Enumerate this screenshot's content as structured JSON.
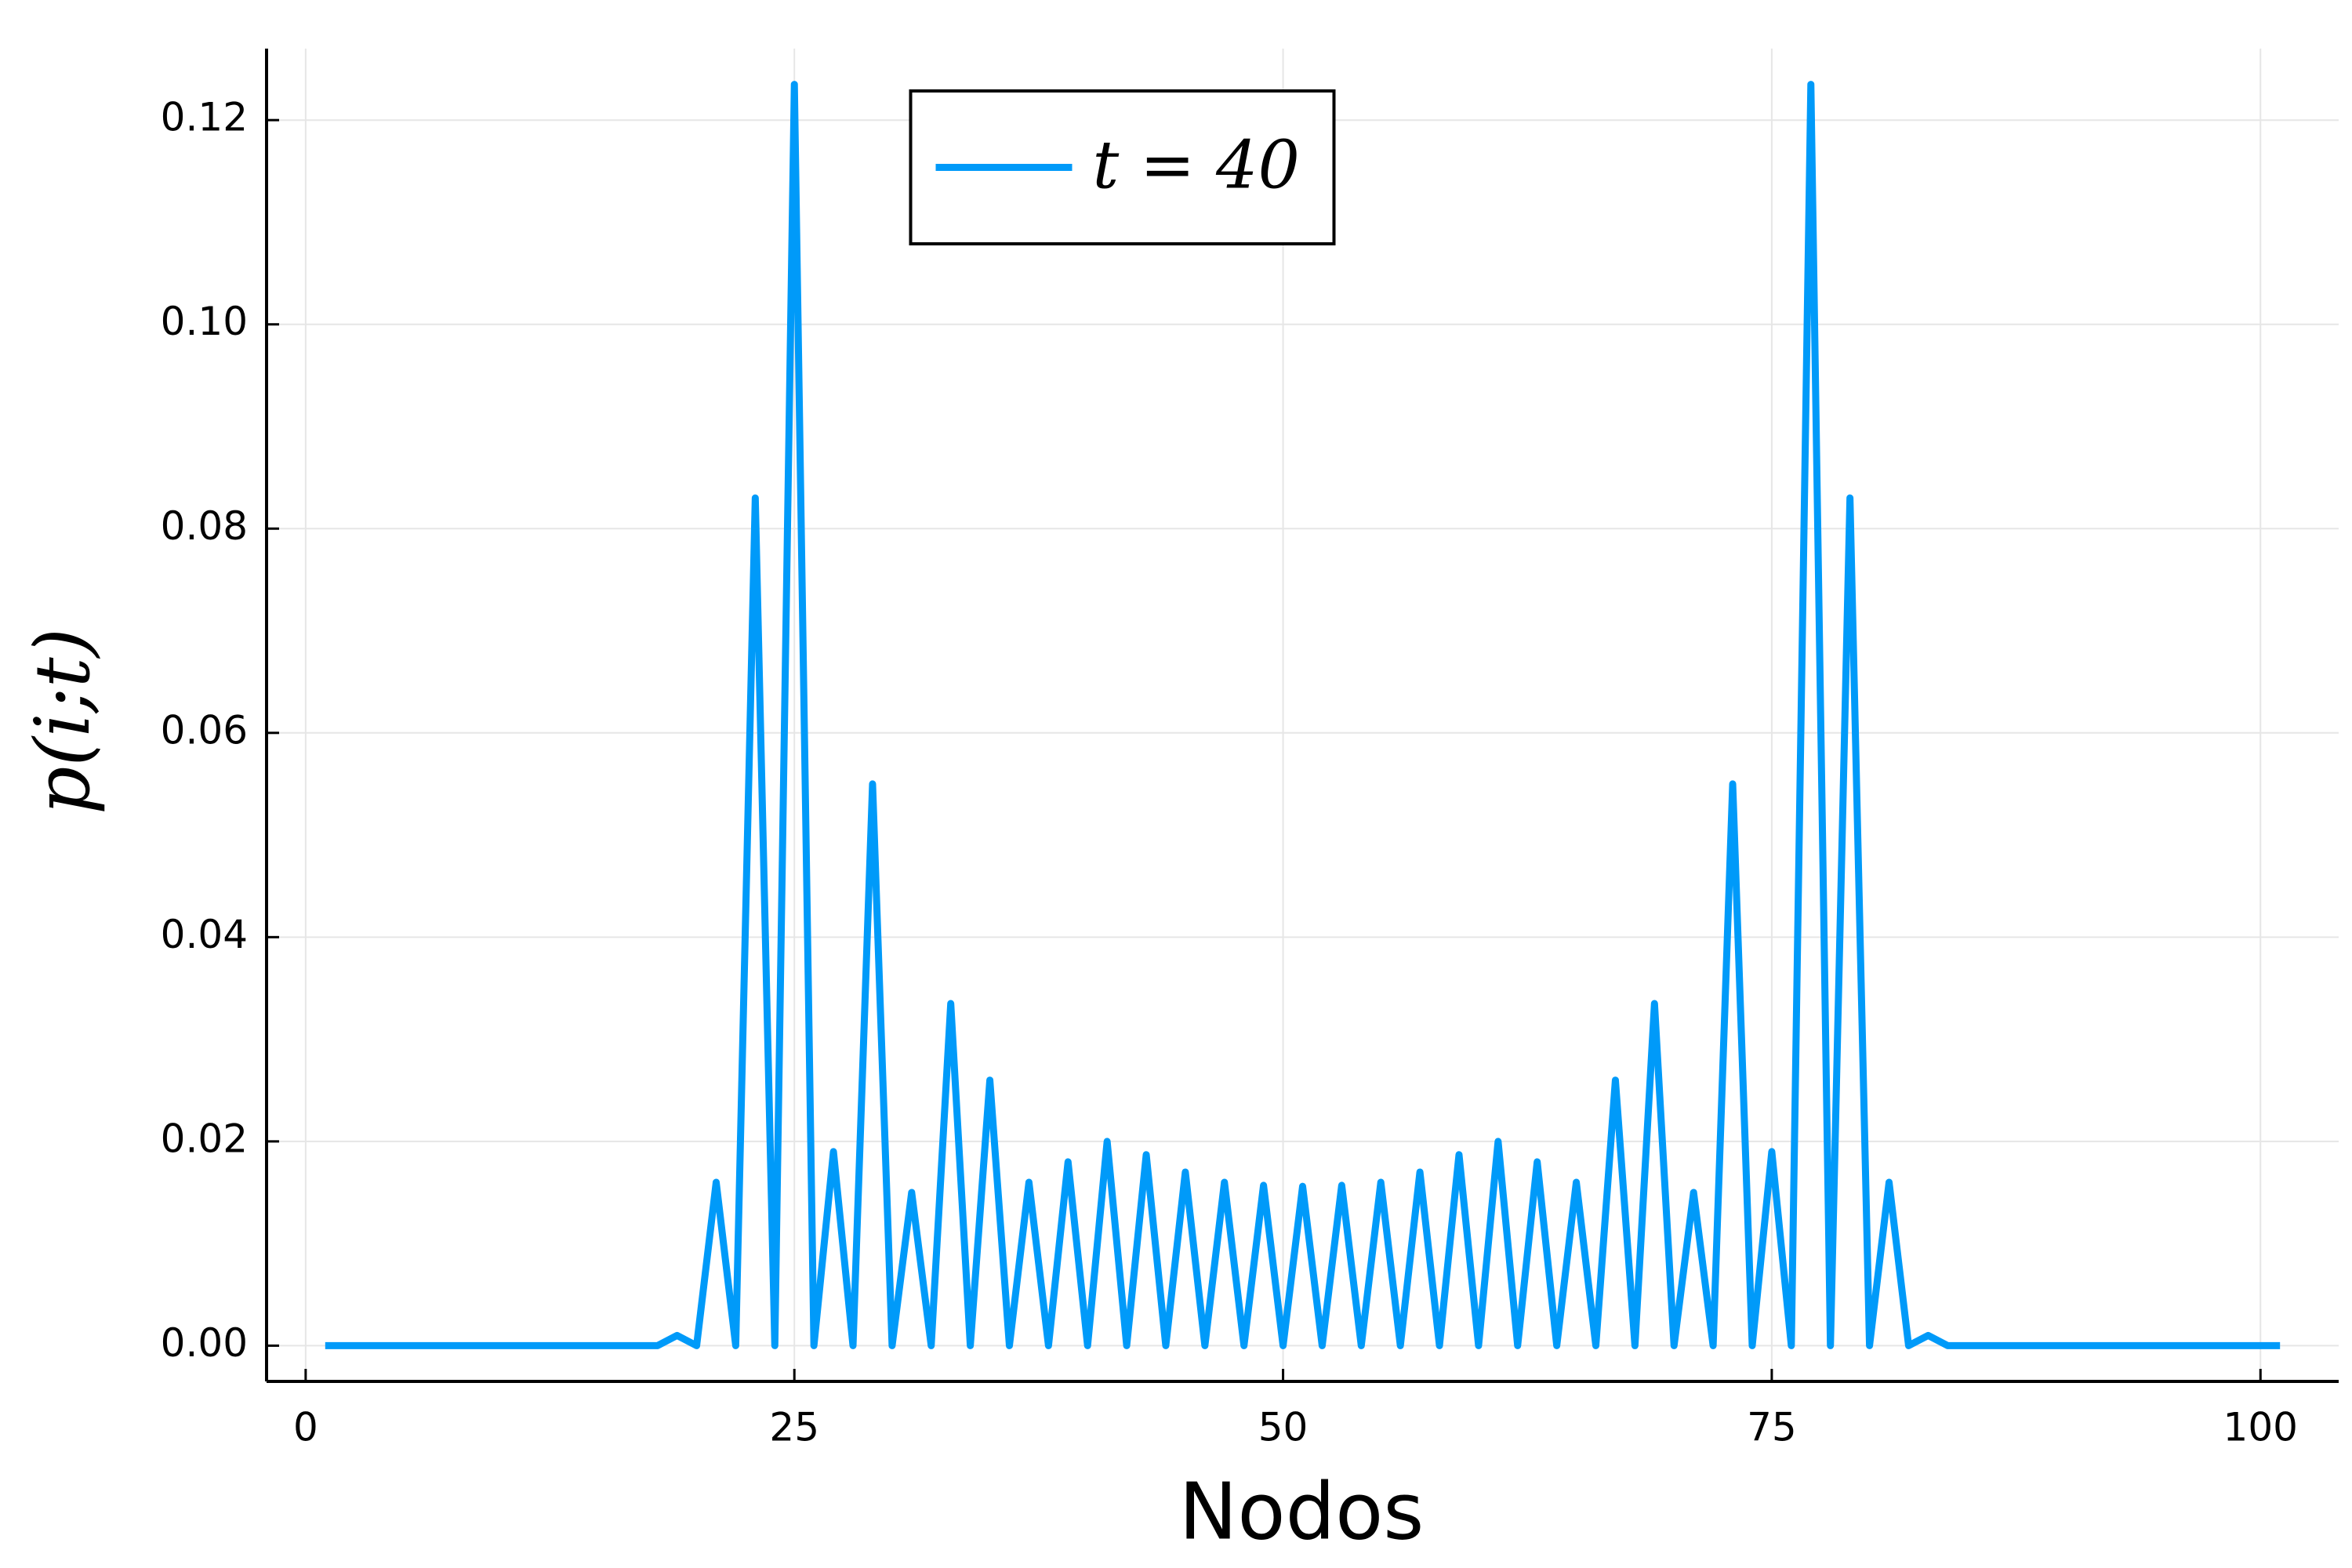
{
  "chart_data": {
    "type": "line",
    "x_label": "Nodos",
    "y_label": "p(i;t)",
    "x": [
      1,
      2,
      3,
      4,
      5,
      6,
      7,
      8,
      9,
      10,
      11,
      12,
      13,
      14,
      15,
      16,
      17,
      18,
      19,
      20,
      21,
      22,
      23,
      24,
      25,
      26,
      27,
      28,
      29,
      30,
      31,
      32,
      33,
      34,
      35,
      36,
      37,
      38,
      39,
      40,
      41,
      42,
      43,
      44,
      45,
      46,
      47,
      48,
      49,
      50,
      51,
      52,
      53,
      54,
      55,
      56,
      57,
      58,
      59,
      60,
      61,
      62,
      63,
      64,
      65,
      66,
      67,
      68,
      69,
      70,
      71,
      72,
      73,
      74,
      75,
      76,
      77,
      78,
      79,
      80,
      81,
      82,
      83,
      84,
      85,
      86,
      87,
      88,
      89,
      90,
      91,
      92,
      93,
      94,
      95,
      96,
      97,
      98,
      99,
      100,
      101
    ],
    "series": [
      {
        "name": "t = 40",
        "color": "#009af9",
        "values": [
          0,
          0,
          0,
          0,
          0,
          0,
          0,
          0,
          0,
          0,
          0,
          0,
          0,
          0,
          0,
          0,
          0,
          0,
          0.001,
          0,
          0.016,
          0,
          0.083,
          0,
          0.1235,
          0,
          0.019,
          0,
          0.055,
          0,
          0.015,
          0,
          0.0335,
          0,
          0.026,
          0,
          0.016,
          0,
          0.018,
          0,
          0.02,
          0,
          0.0187,
          0,
          0.017,
          0,
          0.016,
          0,
          0.0157,
          0,
          0.0156,
          0,
          0.0157,
          0,
          0.016,
          0,
          0.017,
          0,
          0.0187,
          0,
          0.02,
          0,
          0.018,
          0,
          0.016,
          0,
          0.026,
          0,
          0.0335,
          0,
          0.015,
          0,
          0.055,
          0,
          0.019,
          0,
          0.1235,
          0,
          0.083,
          0,
          0.016,
          0,
          0.001,
          0,
          0,
          0,
          0,
          0,
          0,
          0,
          0,
          0,
          0,
          0,
          0,
          0,
          0,
          0,
          0,
          0,
          0
        ]
      }
    ],
    "xlim": [
      -2,
      104
    ],
    "ylim": [
      -0.0035,
      0.127
    ],
    "xticks": [
      0,
      25,
      50,
      75,
      100
    ],
    "yticks": [
      {
        "value": 0,
        "label": "0.00"
      },
      0.02,
      0.04,
      0.06,
      0.08,
      {
        "value": 0.1,
        "label": "0.10"
      },
      0.12
    ],
    "grid": true,
    "legend": "top"
  }
}
